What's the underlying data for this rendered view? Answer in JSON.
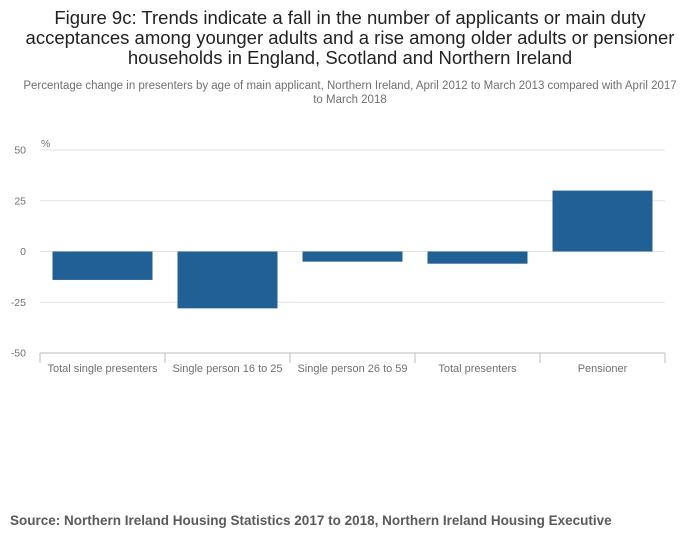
{
  "title": "Figure 9c: Trends indicate a fall in the number of applicants or main duty acceptances among younger adults and a rise among older adults or pensioner households in England, Scotland and Northern Ireland",
  "subtitle": "Percentage change in presenters by age of main applicant, Northern Ireland, April 2012 to March 2013 compared with April 2017 to March 2018",
  "source": "Source: Northern Ireland Housing Statistics 2017 to 2018, Northern Ireland Housing Executive",
  "colors": {
    "bar": "#206095",
    "grid": "#e2e2e3",
    "axis": "#bcbcbd"
  },
  "chart_data": {
    "type": "bar",
    "title": "Figure 9c: Trends indicate a fall in the number of applicants or main duty acceptances among younger adults and a rise among older adults or pensioner households in England, Scotland and Northern Ireland",
    "subtitle": "Percentage change in presenters by age of main applicant, Northern Ireland, April 2012 to March 2013 compared with April 2017 to March 2018",
    "categories": [
      "Total single presenters",
      "Single person 16 to 25",
      "Single person 26 to 59",
      "Total presenters",
      "Pensioner"
    ],
    "values": [
      -14,
      -28,
      -5,
      -6,
      30
    ],
    "xlabel": "",
    "ylabel": "%",
    "ylim": [
      -50,
      50
    ],
    "yticks": [
      50,
      25,
      0,
      -25,
      -50
    ],
    "grid": true,
    "legend": "none"
  }
}
